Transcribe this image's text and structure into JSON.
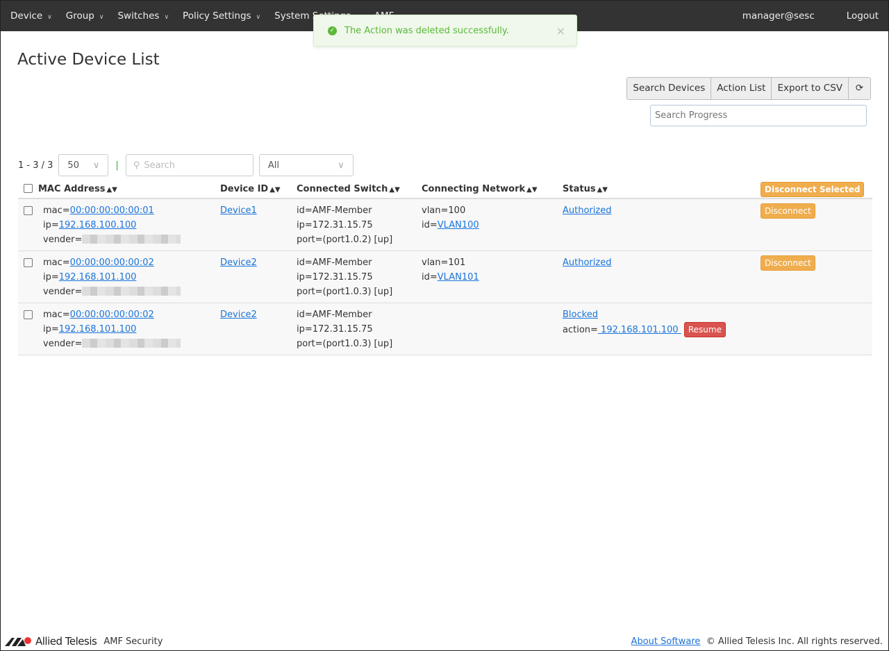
{
  "nav": {
    "items": [
      "Device",
      "Group",
      "Switches",
      "Policy Settings",
      "System Settings",
      "AMF"
    ],
    "user": "manager@sesc",
    "logout": "Logout"
  },
  "toast": {
    "message": "The Action was deleted successfully.",
    "icon": "check-circle-icon"
  },
  "page": {
    "title": "Active Device List"
  },
  "toolbar": {
    "search_devices": "Search Devices",
    "action_list": "Action List",
    "export": "Export to CSV",
    "refresh_icon": "refresh-icon",
    "progress_placeholder": "Search Progress"
  },
  "controls": {
    "count": "1 - 3 / 3",
    "page_size": "50",
    "search_placeholder": "Search",
    "filter": "All"
  },
  "table": {
    "headers": [
      "MAC Address",
      "Device ID",
      "Connected Switch",
      "Connecting Network",
      "Status"
    ],
    "disconnect_selected": "Disconnect Selected",
    "rows": [
      {
        "mac": "00:00:00:00:00:01",
        "ip": "192.168.100.100",
        "device": "Device1",
        "sw_id": "id=AMF-Member",
        "sw_ip": "ip=172.31.15.75",
        "port": "port=(port1.0.2) [up]",
        "vlan": "vlan=100",
        "vlan_id": "VLAN100",
        "status": "Authorized",
        "action": "Disconnect"
      },
      {
        "mac": "00:00:00:00:00:02",
        "ip": "192.168.101.100",
        "device": "Device2",
        "sw_id": "id=AMF-Member",
        "sw_ip": "ip=172.31.15.75",
        "port": "port=(port1.0.3) [up]",
        "vlan": "vlan=101",
        "vlan_id": "VLAN101",
        "status": "Authorized",
        "action": "Disconnect"
      },
      {
        "mac": "00:00:00:00:00:02",
        "ip": "192.168.101.100",
        "device": "Device2",
        "sw_id": "id=AMF-Member",
        "sw_ip": "ip=172.31.15.75",
        "port": "port=(port1.0.3) [up]",
        "status": "Blocked",
        "status_action": " 192.168.101.100 ",
        "resume": "Resume"
      }
    ]
  },
  "labels": {
    "mac": "mac=",
    "ip": "ip=",
    "vender": "vender=",
    "id": "id=",
    "action": "action="
  },
  "footer": {
    "brand": "Allied Telesis",
    "product": "AMF Security",
    "about": "About Software",
    "copyright": "© Allied Telesis Inc. All rights reserved."
  }
}
